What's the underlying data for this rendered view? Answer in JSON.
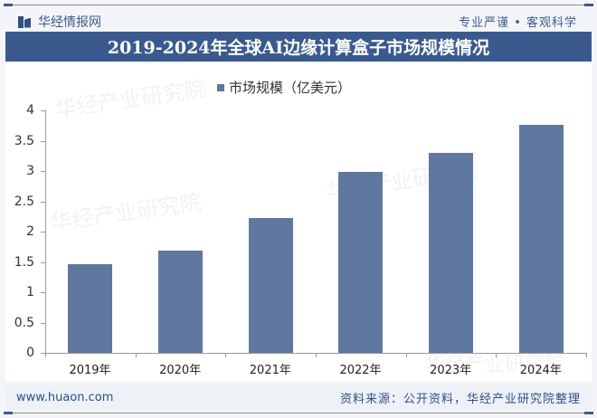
{
  "header": {
    "brand": "华经情报网",
    "slogan": "专业严谨 • 客观科学",
    "title": "2019-2024年全球AI边缘计算盒子市场规模情况"
  },
  "footer": {
    "url": "www.huaon.com",
    "source": "资料来源：公开资料，华经产业研究院整理"
  },
  "watermark": "华经产业研究院",
  "colors": {
    "bar": "#60789f",
    "title_bg": "#3a5a8f",
    "brand": "#3d5a8c"
  },
  "chart_data": {
    "type": "bar",
    "title": "2019-2024年全球AI边缘计算盒子市场规模情况",
    "categories": [
      "2019年",
      "2020年",
      "2021年",
      "2022年",
      "2023年",
      "2024年"
    ],
    "series": [
      {
        "name": "市场规模（亿美元）",
        "values": [
          1.47,
          1.68,
          2.23,
          2.98,
          3.3,
          3.76
        ]
      }
    ],
    "xlabel": "",
    "ylabel": "",
    "ylim": [
      0,
      4
    ],
    "yticks": [
      "0",
      "0.5",
      "1",
      "1.5",
      "2",
      "2.5",
      "3",
      "3.5",
      "4"
    ],
    "legend_position": "top",
    "grid": false
  }
}
